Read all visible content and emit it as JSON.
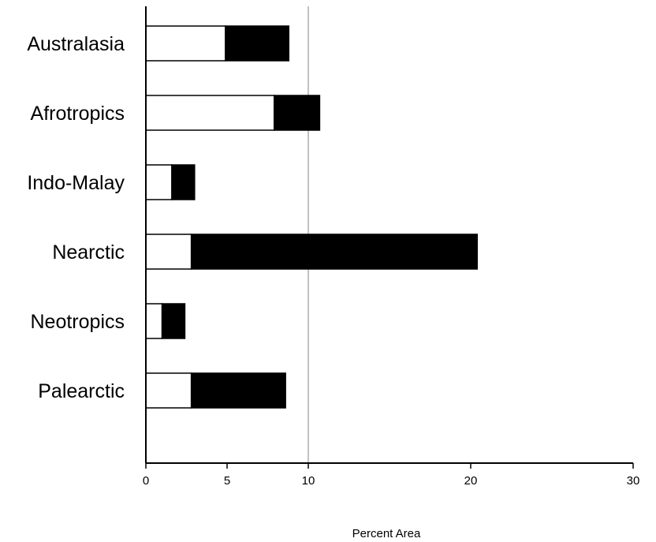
{
  "chart_data": {
    "type": "bar",
    "orientation": "horizontal",
    "stacked": true,
    "title": "",
    "xlabel": "Percent Area",
    "ylabel": "",
    "categories": [
      "Australasia",
      "Afrotropics",
      "Indo-Malay",
      "Nearctic",
      "Neotropics",
      "Palearctic"
    ],
    "series": [
      {
        "color": "#ffffff",
        "values": [
          4.9,
          7.9,
          1.6,
          2.8,
          1.0,
          2.8
        ]
      },
      {
        "color": "#000000",
        "values": [
          3.9,
          2.8,
          1.4,
          17.6,
          1.4,
          5.8
        ]
      }
    ],
    "xticks": [
      0,
      5,
      10,
      20,
      30
    ],
    "xlim": [
      0,
      30
    ],
    "reference_line": 10,
    "grid": false,
    "legend": "none"
  }
}
